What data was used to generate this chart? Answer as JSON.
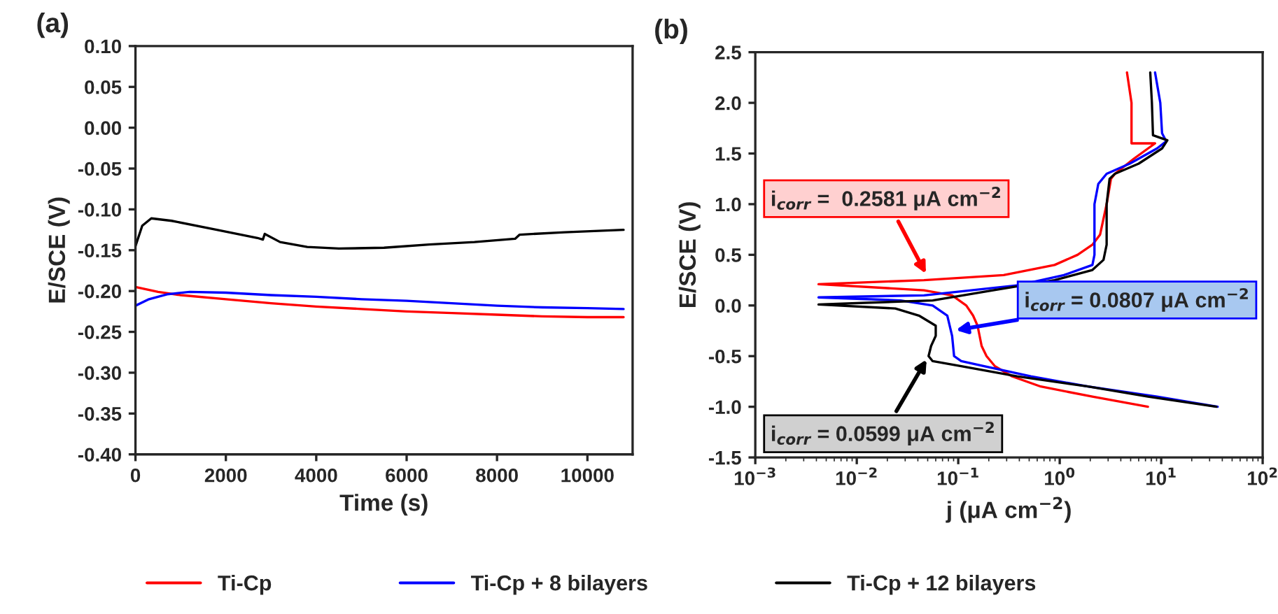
{
  "chart_data": [
    {
      "type": "line",
      "title": "(a)",
      "xlabel": "Time (s)",
      "ylabel": "E/SCE (V)",
      "legend": "bottom",
      "grid": false,
      "xlim": [
        0,
        11000
      ],
      "xticks": [
        0,
        2000,
        4000,
        6000,
        8000,
        10000
      ],
      "ylim": [
        -0.4,
        0.1
      ],
      "yticks": [
        {
          "value": 0.1,
          "label": "0.10"
        },
        {
          "value": 0.05,
          "label": "0.05"
        },
        {
          "value": 0,
          "label": "0.00"
        },
        {
          "value": -0.05,
          "label": "-0.05"
        },
        {
          "value": -0.1,
          "label": "-0.10"
        },
        {
          "value": -0.15,
          "label": "-0.15"
        },
        {
          "value": -0.2,
          "label": "-0.20"
        },
        {
          "value": -0.25,
          "label": "-0.25"
        },
        {
          "value": -0.3,
          "label": "-0.30"
        },
        {
          "value": -0.35,
          "label": "-0.35"
        },
        {
          "value": -0.4,
          "label": "-0.40"
        }
      ],
      "series": [
        {
          "name": "Ti-Cp",
          "color": "#ff0000",
          "x": [
            0,
            500,
            1000,
            2000,
            3000,
            4000,
            5000,
            6000,
            7000,
            8000,
            9000,
            10000,
            10800
          ],
          "values": [
            -0.195,
            -0.201,
            -0.205,
            -0.21,
            -0.215,
            -0.219,
            -0.222,
            -0.225,
            -0.227,
            -0.229,
            -0.231,
            -0.232,
            -0.232
          ]
        },
        {
          "name": "Ti-Cp + 8 bilayers",
          "color": "#0000ff",
          "x": [
            0,
            300,
            700,
            1200,
            2000,
            3000,
            4000,
            5000,
            6000,
            7000,
            8000,
            9000,
            10000,
            10800
          ],
          "values": [
            -0.218,
            -0.21,
            -0.204,
            -0.201,
            -0.202,
            -0.205,
            -0.207,
            -0.21,
            -0.212,
            -0.215,
            -0.218,
            -0.22,
            -0.221,
            -0.222
          ]
        },
        {
          "name": "Ti-Cp + 12 bilayers",
          "color": "#000000",
          "x": [
            0,
            150,
            350,
            800,
            1800,
            2700,
            2820,
            2860,
            3200,
            3800,
            4500,
            5500,
            6500,
            7500,
            8400,
            8500,
            9500,
            10800
          ],
          "values": [
            -0.145,
            -0.12,
            -0.111,
            -0.114,
            -0.125,
            -0.135,
            -0.137,
            -0.13,
            -0.14,
            -0.146,
            -0.148,
            -0.147,
            -0.143,
            -0.14,
            -0.136,
            -0.131,
            -0.128,
            -0.125
          ]
        }
      ]
    },
    {
      "type": "line",
      "title": "(b)",
      "xlabel": "j (μA cm$^{−2}$)",
      "ylabel": "E/SCE (V)",
      "log": "x",
      "grid": false,
      "xlim": [
        0.001,
        100
      ],
      "xticks": [
        {
          "value": 0.001,
          "label": "10$^{−3}$"
        },
        {
          "value": 0.01,
          "label": "10$^{−2}$"
        },
        {
          "value": 0.1,
          "label": "10$^{−1}$"
        },
        {
          "value": 1,
          "label": "10$^{0}$"
        },
        {
          "value": 10,
          "label": "10$^{1}$"
        },
        {
          "value": 100,
          "label": "10$^{2}$"
        }
      ],
      "ylim": [
        -1.5,
        2.5
      ],
      "yticks": [
        {
          "value": -1.5,
          "label": "-1.5"
        },
        {
          "value": -1,
          "label": "-1.0"
        },
        {
          "value": -0.5,
          "label": "-0.5"
        },
        {
          "value": 0,
          "label": "0.0"
        },
        {
          "value": 0.5,
          "label": "0.5"
        },
        {
          "value": 1,
          "label": "1.0"
        },
        {
          "value": 1.5,
          "label": "1.5"
        },
        {
          "value": 2,
          "label": "2.0"
        },
        {
          "value": 2.5,
          "label": "2.5"
        }
      ],
      "annotations": [
        {
          "text": "i$_{corr}$ =  0.2581 μA cm$^{−2}$",
          "x": 0.05,
          "y": 0.28
        },
        {
          "text": "i$_{corr}$ = 0.0807 μA cm$^{−2}$",
          "x": 0.087,
          "y": -0.25
        },
        {
          "text": "i$_{corr}$ = 0.0599 μA cm$^{−2}$",
          "x": 0.051,
          "y": -0.5
        }
      ],
      "series": [
        {
          "color": "#ff0000",
          "x": [
            7.4,
            2.1,
            0.65,
            0.34,
            0.23,
            0.19,
            0.17,
            0.155,
            0.14,
            0.12,
            0.087,
            0.046,
            0.0042,
            0.046,
            0.28,
            0.89,
            1.5,
            2.1,
            2.5,
            2.9,
            3.2,
            3.5,
            5.4,
            8.7,
            5.1,
            5.1,
            4.6
          ],
          "values": [
            -1.0,
            -0.9,
            -0.8,
            -0.7,
            -0.6,
            -0.5,
            -0.4,
            -0.2,
            -0.1,
            0.0,
            0.1,
            0.15,
            0.21,
            0.25,
            0.3,
            0.4,
            0.5,
            0.6,
            0.7,
            1.0,
            1.25,
            1.3,
            1.45,
            1.6,
            1.6,
            2.0,
            2.3
          ]
        },
        {
          "color": "#0000ff",
          "x": [
            36,
            9.1,
            1.9,
            0.52,
            0.18,
            0.107,
            0.091,
            0.087,
            0.078,
            0.056,
            0.027,
            0.0042,
            0.046,
            0.39,
            1.1,
            2.1,
            2.2,
            2.2,
            2.2,
            2.4,
            2.9,
            4.9,
            9.1,
            11.2,
            10.2,
            9.8,
            8.7
          ],
          "values": [
            -1.0,
            -0.9,
            -0.8,
            -0.7,
            -0.6,
            -0.55,
            -0.5,
            -0.3,
            -0.1,
            0.0,
            0.05,
            0.08,
            0.1,
            0.2,
            0.3,
            0.4,
            0.5,
            0.6,
            1.0,
            1.2,
            1.3,
            1.4,
            1.55,
            1.62,
            1.7,
            2.0,
            2.3
          ]
        },
        {
          "color": "#000000",
          "x": [
            35,
            7.4,
            1.9,
            0.38,
            0.107,
            0.056,
            0.051,
            0.054,
            0.06,
            0.06,
            0.041,
            0.024,
            0.0042,
            0.056,
            0.22,
            0.89,
            2.1,
            2.7,
            2.9,
            2.9,
            3.1,
            3.5,
            6.0,
            10.2,
            11.5,
            8.3,
            8.1,
            7.8
          ],
          "values": [
            -1.0,
            -0.9,
            -0.8,
            -0.7,
            -0.6,
            -0.55,
            -0.5,
            -0.4,
            -0.3,
            -0.2,
            -0.1,
            -0.03,
            0.01,
            0.05,
            0.15,
            0.25,
            0.35,
            0.45,
            0.6,
            1.0,
            1.25,
            1.3,
            1.4,
            1.55,
            1.63,
            1.68,
            2.0,
            2.3
          ]
        }
      ]
    }
  ]
}
